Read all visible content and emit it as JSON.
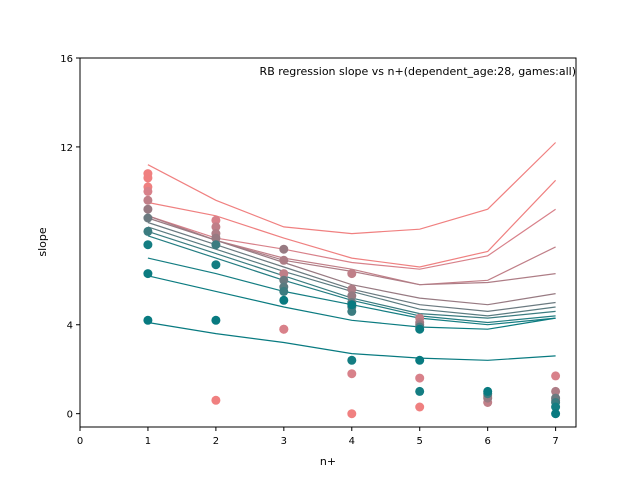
{
  "chart_data": {
    "type": "line",
    "title": "RB regression slope vs n+(dependent_age:28, games:all)",
    "xlabel": "n+",
    "ylabel": "slope",
    "xlim": [
      0,
      7.3
    ],
    "ylim": [
      -0.6,
      16
    ],
    "xticks": [
      0,
      1,
      2,
      3,
      4,
      5,
      6,
      7
    ],
    "yticks": [
      0,
      4,
      12,
      16
    ],
    "grid": false,
    "legend": "none",
    "lines": [
      {
        "color": "#f08080",
        "x": [
          1,
          2,
          3,
          4,
          5,
          6,
          7
        ],
        "y": [
          11.2,
          9.6,
          8.4,
          8.1,
          8.3,
          9.2,
          12.2
        ]
      },
      {
        "color": "#ef8080",
        "x": [
          1,
          2,
          3,
          4,
          5,
          6,
          7
        ],
        "y": [
          9.5,
          8.9,
          7.9,
          7.0,
          6.6,
          7.3,
          10.5
        ]
      },
      {
        "color": "#d8818a",
        "x": [
          1,
          2,
          3,
          4,
          5,
          6,
          7
        ],
        "y": [
          8.9,
          7.9,
          7.4,
          6.8,
          6.5,
          7.1,
          9.2
        ]
      },
      {
        "color": "#c07f88",
        "x": [
          1,
          2,
          3,
          4,
          5,
          6,
          7
        ],
        "y": [
          8.9,
          7.8,
          7.0,
          6.5,
          5.8,
          6.0,
          7.5
        ]
      },
      {
        "color": "#ae7d86",
        "x": [
          1,
          2,
          3,
          4,
          5,
          6,
          7
        ],
        "y": [
          8.9,
          7.8,
          6.9,
          6.4,
          5.8,
          5.9,
          6.3
        ]
      },
      {
        "color": "#977a82",
        "x": [
          1,
          2,
          3,
          4,
          5,
          6,
          7
        ],
        "y": [
          8.8,
          7.8,
          6.8,
          5.8,
          5.2,
          4.9,
          5.4
        ]
      },
      {
        "color": "#6b7a80",
        "x": [
          1,
          2,
          3,
          4,
          5,
          6,
          7
        ],
        "y": [
          8.6,
          7.6,
          6.6,
          5.6,
          4.9,
          4.6,
          5.0
        ]
      },
      {
        "color": "#5a7b80",
        "x": [
          1,
          2,
          3,
          4,
          5,
          6,
          7
        ],
        "y": [
          8.4,
          7.4,
          6.4,
          5.5,
          4.7,
          4.4,
          4.8
        ]
      },
      {
        "color": "#3b7c80",
        "x": [
          1,
          2,
          3,
          4,
          5,
          6,
          7
        ],
        "y": [
          8.2,
          7.2,
          6.2,
          5.2,
          4.5,
          4.3,
          4.6
        ]
      },
      {
        "color": "#247d82",
        "x": [
          1,
          2,
          3,
          4,
          5,
          6,
          7
        ],
        "y": [
          8.0,
          7.0,
          6.0,
          5.1,
          4.4,
          4.1,
          4.4
        ]
      },
      {
        "color": "#147d82",
        "x": [
          1,
          2,
          3,
          4,
          5,
          6,
          7
        ],
        "y": [
          7.0,
          6.3,
          5.5,
          4.9,
          4.3,
          4.0,
          4.3
        ]
      },
      {
        "color": "#0b7b80",
        "x": [
          1,
          2,
          3,
          4,
          5,
          6,
          7
        ],
        "y": [
          6.2,
          5.5,
          4.8,
          4.2,
          3.9,
          3.8,
          4.3
        ]
      },
      {
        "color": "#087a80",
        "x": [
          1,
          2,
          3,
          4,
          5,
          6,
          7
        ],
        "y": [
          4.1,
          3.6,
          3.2,
          2.7,
          2.5,
          2.4,
          2.6
        ]
      }
    ],
    "points": [
      {
        "color": "#f08080",
        "x": 1,
        "y": 10.8
      },
      {
        "color": "#ef8080",
        "x": 1,
        "y": 10.6
      },
      {
        "color": "#ef8080",
        "x": 1,
        "y": 10.2
      },
      {
        "color": "#d8818a",
        "x": 1,
        "y": 10.0
      },
      {
        "color": "#c07f88",
        "x": 1,
        "y": 9.6
      },
      {
        "color": "#977a82",
        "x": 1,
        "y": 9.2
      },
      {
        "color": "#6b7a80",
        "x": 1,
        "y": 8.8
      },
      {
        "color": "#3b7c80",
        "x": 1,
        "y": 8.2
      },
      {
        "color": "#147d82",
        "x": 1,
        "y": 7.6
      },
      {
        "color": "#0b7b80",
        "x": 1,
        "y": 6.3
      },
      {
        "color": "#087a80",
        "x": 1,
        "y": 4.2
      },
      {
        "color": "#f08080",
        "x": 2,
        "y": 0.6
      },
      {
        "color": "#d8818a",
        "x": 2,
        "y": 8.7
      },
      {
        "color": "#c07f88",
        "x": 2,
        "y": 8.4
      },
      {
        "color": "#ae7d86",
        "x": 2,
        "y": 8.1
      },
      {
        "color": "#977a82",
        "x": 2,
        "y": 7.9
      },
      {
        "color": "#3b7c80",
        "x": 2,
        "y": 7.6
      },
      {
        "color": "#147d82",
        "x": 2,
        "y": 6.7
      },
      {
        "color": "#087a80",
        "x": 2,
        "y": 4.2
      },
      {
        "color": "#ef8080",
        "x": 3,
        "y": 3.8
      },
      {
        "color": "#d8818a",
        "x": 3,
        "y": 3.8
      },
      {
        "color": "#977a82",
        "x": 3,
        "y": 7.4
      },
      {
        "color": "#ae7d86",
        "x": 3,
        "y": 6.9
      },
      {
        "color": "#c07f88",
        "x": 3,
        "y": 6.3
      },
      {
        "color": "#6b7a80",
        "x": 3,
        "y": 6.0
      },
      {
        "color": "#5a7b80",
        "x": 3,
        "y": 5.7
      },
      {
        "color": "#3b7c80",
        "x": 3,
        "y": 5.5
      },
      {
        "color": "#087a80",
        "x": 3,
        "y": 5.1
      },
      {
        "color": "#f08080",
        "x": 4,
        "y": 0.0
      },
      {
        "color": "#d8818a",
        "x": 4,
        "y": 1.8
      },
      {
        "color": "#147d82",
        "x": 4,
        "y": 2.4
      },
      {
        "color": "#c07f88",
        "x": 4,
        "y": 6.3
      },
      {
        "color": "#ae7d86",
        "x": 4,
        "y": 5.6
      },
      {
        "color": "#977a82",
        "x": 4,
        "y": 5.3
      },
      {
        "color": "#6b7a80",
        "x": 4,
        "y": 5.0
      },
      {
        "color": "#5a7b80",
        "x": 4,
        "y": 4.8
      },
      {
        "color": "#3b7c80",
        "x": 4,
        "y": 4.6
      },
      {
        "color": "#087a80",
        "x": 4,
        "y": 4.9
      },
      {
        "color": "#ef8080",
        "x": 5,
        "y": 0.3
      },
      {
        "color": "#d8818a",
        "x": 5,
        "y": 1.6
      },
      {
        "color": "#147d82",
        "x": 5,
        "y": 1.0
      },
      {
        "color": "#087a80",
        "x": 5,
        "y": 2.4
      },
      {
        "color": "#c07f88",
        "x": 5,
        "y": 4.3
      },
      {
        "color": "#ae7d86",
        "x": 5,
        "y": 4.1
      },
      {
        "color": "#977a82",
        "x": 5,
        "y": 4.0
      },
      {
        "color": "#5a7b80",
        "x": 5,
        "y": 3.9
      },
      {
        "color": "#0b7b80",
        "x": 5,
        "y": 3.8
      },
      {
        "color": "#ef8080",
        "x": 6,
        "y": 0.8
      },
      {
        "color": "#c07f88",
        "x": 6,
        "y": 0.5
      },
      {
        "color": "#977a82",
        "x": 6,
        "y": 0.7
      },
      {
        "color": "#3b7c80",
        "x": 6,
        "y": 0.9
      },
      {
        "color": "#087a80",
        "x": 6,
        "y": 1.0
      },
      {
        "color": "#d8818a",
        "x": 7,
        "y": 1.7
      },
      {
        "color": "#ae7d86",
        "x": 7,
        "y": 1.0
      },
      {
        "color": "#977a82",
        "x": 7,
        "y": 0.6
      },
      {
        "color": "#6b7a80",
        "x": 7,
        "y": 0.7
      },
      {
        "color": "#3b7c80",
        "x": 7,
        "y": 0.5
      },
      {
        "color": "#147d82",
        "x": 7,
        "y": 0.3
      },
      {
        "color": "#087a80",
        "x": 7,
        "y": 0.0
      }
    ]
  }
}
